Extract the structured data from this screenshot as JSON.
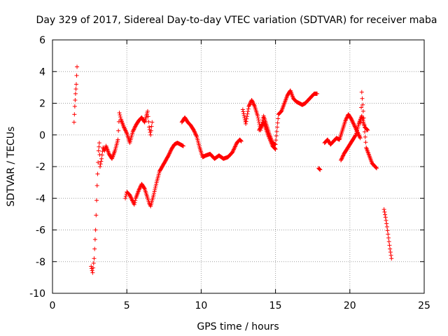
{
  "chart_data": {
    "type": "scatter",
    "title": "Day 329 of 2017, Sidereal Day-to-day VTEC variation (SDTVAR) for receiver maba",
    "xlabel": "GPS time / hours",
    "ylabel": "SDTVAR / TECUs",
    "xlim": [
      0,
      25
    ],
    "ylim": [
      -10,
      6
    ],
    "xticks": [
      0,
      5,
      10,
      15,
      20,
      25
    ],
    "yticks": [
      -10,
      -8,
      -6,
      -4,
      -2,
      0,
      2,
      4,
      6
    ],
    "grid": true,
    "marker": "plus",
    "color": "#ff0000",
    "segments": [
      {
        "x": [
          1.45,
          1.5,
          1.55,
          1.6,
          1.65
        ],
        "y": [
          0.8,
          1.8,
          2.6,
          3.2,
          4.3
        ]
      },
      {
        "x": [
          2.6,
          2.7,
          2.8,
          2.9,
          3.0,
          3.1,
          3.15,
          3.2,
          3.3,
          3.4,
          3.5,
          3.6
        ],
        "y": [
          -8.3,
          -8.7,
          -7.8,
          -6.0,
          -3.2,
          -1.0,
          -0.5,
          -2.0,
          -1.5,
          -0.8,
          -1.0,
          -0.7
        ]
      },
      {
        "x": [
          3.6,
          3.8,
          4.0,
          4.2,
          4.4,
          4.5,
          4.6,
          4.8,
          5.0,
          5.2,
          5.4,
          5.6,
          5.8,
          6.0,
          6.2,
          6.4,
          6.5,
          6.6,
          6.7
        ],
        "y": [
          -0.7,
          -1.2,
          -1.5,
          -1.0,
          -0.3,
          1.4,
          1.0,
          0.5,
          0.1,
          -0.5,
          0.2,
          0.6,
          0.9,
          1.1,
          0.8,
          1.5,
          0.5,
          0.0,
          0.8
        ]
      },
      {
        "x": [
          4.9,
          5.0,
          5.2,
          5.4,
          5.5,
          5.6,
          5.8,
          6.0,
          6.2,
          6.4,
          6.5,
          6.6,
          6.8,
          7.0,
          7.2,
          7.5,
          7.8,
          8.0,
          8.2,
          8.4,
          8.6,
          8.8
        ],
        "y": [
          -4.0,
          -3.6,
          -3.8,
          -4.2,
          -4.4,
          -4.0,
          -3.5,
          -3.1,
          -3.4,
          -4.0,
          -4.3,
          -4.5,
          -3.8,
          -3.0,
          -2.3,
          -1.8,
          -1.3,
          -0.9,
          -0.6,
          -0.5,
          -0.6,
          -0.7
        ]
      },
      {
        "x": [
          8.7,
          8.9,
          9.1,
          9.3,
          9.5,
          9.7,
          9.9,
          10.1,
          10.3,
          10.6,
          10.9,
          11.2,
          11.5,
          11.8,
          12.1,
          12.4,
          12.6,
          12.7
        ],
        "y": [
          0.8,
          1.1,
          0.8,
          0.6,
          0.3,
          -0.1,
          -0.8,
          -1.4,
          -1.3,
          -1.2,
          -1.5,
          -1.3,
          -1.5,
          -1.4,
          -1.1,
          -0.5,
          -0.3,
          -0.4
        ]
      },
      {
        "x": [
          12.8,
          13.0,
          13.2,
          13.4,
          13.6,
          13.8,
          14.0,
          14.2,
          14.4,
          14.6,
          14.8,
          15.0,
          15.2,
          15.4,
          15.6,
          15.8,
          16.0,
          16.2,
          16.4,
          16.6,
          16.8,
          17.0,
          17.2,
          17.4,
          17.6,
          17.8
        ],
        "y": [
          1.6,
          0.7,
          1.8,
          2.2,
          1.8,
          1.2,
          0.3,
          1.2,
          0.6,
          0.0,
          -0.5,
          -0.6,
          1.3,
          1.5,
          2.0,
          2.5,
          2.8,
          2.3,
          2.1,
          2.0,
          1.9,
          2.0,
          2.2,
          2.4,
          2.6,
          2.6
        ]
      },
      {
        "x": [
          13.9,
          14.2,
          14.5,
          14.8,
          15.0
        ],
        "y": [
          0.3,
          0.8,
          0.0,
          -0.7,
          -0.9
        ]
      },
      {
        "x": [
          17.9,
          18.0
        ],
        "y": [
          -2.1,
          -2.2
        ]
      },
      {
        "x": [
          18.3,
          18.5,
          18.7,
          18.9,
          19.1,
          19.3,
          19.5,
          19.7,
          19.9,
          20.1,
          20.3,
          20.5,
          20.7,
          20.8,
          20.9,
          21.0,
          21.1,
          21.3,
          21.5,
          21.7,
          21.8
        ],
        "y": [
          -0.5,
          -0.3,
          -0.6,
          -0.4,
          -0.2,
          -0.3,
          0.3,
          0.9,
          1.3,
          1.0,
          0.6,
          0.2,
          -0.2,
          2.7,
          1.5,
          0.2,
          -0.8,
          -1.3,
          -1.8,
          -2.0,
          -2.1
        ]
      },
      {
        "x": [
          19.4,
          19.6,
          19.8,
          20.0,
          20.2,
          20.4,
          20.6,
          20.8,
          21.0,
          21.2
        ],
        "y": [
          -1.6,
          -1.2,
          -0.9,
          -0.6,
          -0.3,
          0.0,
          0.7,
          1.2,
          0.5,
          0.3
        ]
      },
      {
        "x": [
          22.3,
          22.4,
          22.5,
          22.6,
          22.7,
          22.8
        ],
        "y": [
          -4.7,
          -5.2,
          -5.8,
          -6.5,
          -7.2,
          -7.8
        ]
      }
    ]
  }
}
